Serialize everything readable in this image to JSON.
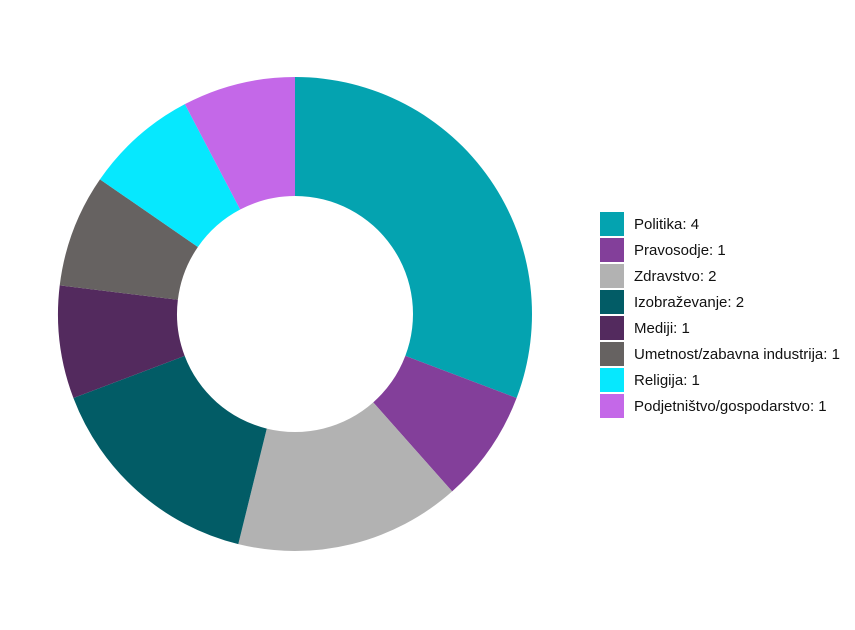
{
  "chart_data": {
    "type": "donut",
    "categories": [
      "Politika: 4",
      "Pravosodje: 1",
      "Zdravstvo: 2",
      "Izobraževanje: 2",
      "Mediji: 1",
      "Umetnost/zabavna industrija: 1",
      "Religija: 1",
      "Podjetništvo/gospodarstvo: 1"
    ],
    "values": [
      4,
      1,
      2,
      2,
      1,
      1,
      1,
      1
    ],
    "colors": [
      "#04a3b0",
      "#833f9a",
      "#b2b2b2",
      "#025c66",
      "#532a5e",
      "#666261",
      "#06e8fe",
      "#c468e8"
    ]
  }
}
